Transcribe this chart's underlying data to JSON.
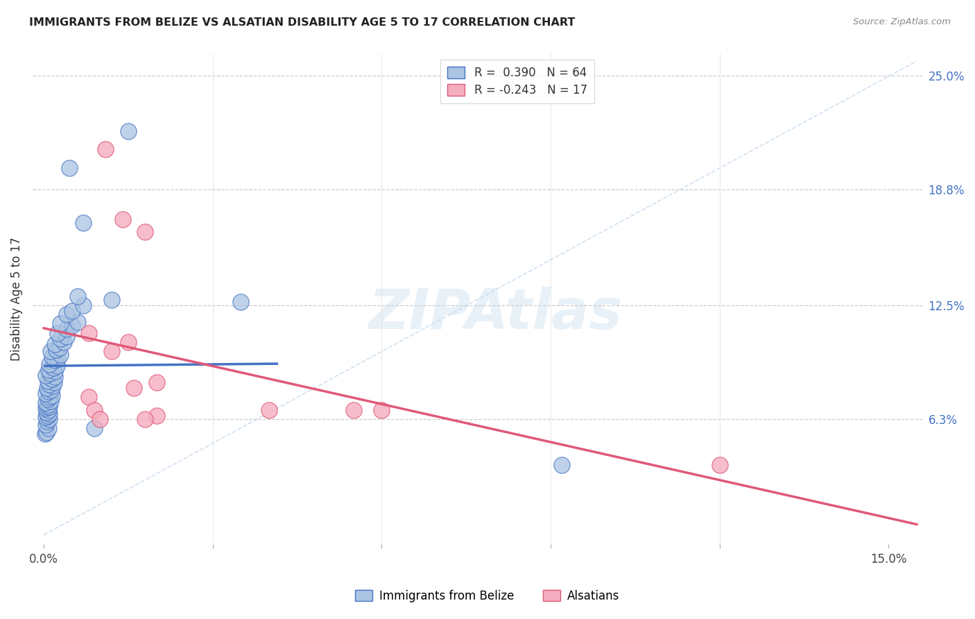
{
  "title": "IMMIGRANTS FROM BELIZE VS ALSATIAN DISABILITY AGE 5 TO 17 CORRELATION CHART",
  "source": "Source: ZipAtlas.com",
  "ylabel_label": "Disability Age 5 to 17",
  "xlim": [
    -0.002,
    0.156
  ],
  "ylim": [
    -0.005,
    0.262
  ],
  "r_belize": 0.39,
  "n_belize": 64,
  "r_alsatian": -0.243,
  "n_alsatian": 17,
  "color_belize": "#aac4e2",
  "color_alsatian": "#f5adc0",
  "line_color_belize": "#4472c4",
  "line_color_alsatian": "#e05878",
  "line_color_diagonal": "#b8d0ea",
  "right_yticks": [
    0.0,
    0.063,
    0.125,
    0.188,
    0.25
  ],
  "right_yticklabels": [
    "",
    "6.3%",
    "12.5%",
    "18.8%",
    "25.0%"
  ],
  "xticks": [
    0.0,
    0.03,
    0.06,
    0.09,
    0.12,
    0.15
  ],
  "xticklabels": [
    "0.0%",
    "",
    "",
    "",
    "",
    "15.0%"
  ],
  "belize_scatter": [
    [
      0.0002,
      0.055
    ],
    [
      0.0005,
      0.056
    ],
    [
      0.0008,
      0.058
    ],
    [
      0.0003,
      0.06
    ],
    [
      0.0006,
      0.062
    ],
    [
      0.001,
      0.063
    ],
    [
      0.0004,
      0.064
    ],
    [
      0.0007,
      0.065
    ],
    [
      0.001,
      0.066
    ],
    [
      0.0005,
      0.067
    ],
    [
      0.0009,
      0.068
    ],
    [
      0.0003,
      0.069
    ],
    [
      0.0006,
      0.07
    ],
    [
      0.001,
      0.07
    ],
    [
      0.0008,
      0.071
    ],
    [
      0.0004,
      0.072
    ],
    [
      0.0012,
      0.073
    ],
    [
      0.0007,
      0.074
    ],
    [
      0.001,
      0.075
    ],
    [
      0.0015,
      0.076
    ],
    [
      0.0003,
      0.077
    ],
    [
      0.0009,
      0.078
    ],
    [
      0.0013,
      0.079
    ],
    [
      0.0006,
      0.08
    ],
    [
      0.0016,
      0.081
    ],
    [
      0.001,
      0.082
    ],
    [
      0.0018,
      0.083
    ],
    [
      0.0007,
      0.084
    ],
    [
      0.0014,
      0.085
    ],
    [
      0.002,
      0.086
    ],
    [
      0.0004,
      0.087
    ],
    [
      0.0011,
      0.088
    ],
    [
      0.0019,
      0.089
    ],
    [
      0.0008,
      0.09
    ],
    [
      0.0017,
      0.091
    ],
    [
      0.0023,
      0.092
    ],
    [
      0.001,
      0.093
    ],
    [
      0.002,
      0.095
    ],
    [
      0.0025,
      0.096
    ],
    [
      0.0015,
      0.097
    ],
    [
      0.003,
      0.098
    ],
    [
      0.0012,
      0.1
    ],
    [
      0.0022,
      0.101
    ],
    [
      0.0028,
      0.102
    ],
    [
      0.002,
      0.104
    ],
    [
      0.0035,
      0.105
    ],
    [
      0.003,
      0.107
    ],
    [
      0.004,
      0.108
    ],
    [
      0.0025,
      0.11
    ],
    [
      0.004,
      0.112
    ],
    [
      0.005,
      0.114
    ],
    [
      0.003,
      0.115
    ],
    [
      0.006,
      0.116
    ],
    [
      0.004,
      0.12
    ],
    [
      0.005,
      0.122
    ],
    [
      0.007,
      0.125
    ],
    [
      0.006,
      0.13
    ],
    [
      0.012,
      0.128
    ],
    [
      0.007,
      0.17
    ],
    [
      0.0045,
      0.2
    ],
    [
      0.015,
      0.22
    ],
    [
      0.009,
      0.058
    ],
    [
      0.035,
      0.127
    ],
    [
      0.092,
      0.038
    ]
  ],
  "alsatian_scatter": [
    [
      0.011,
      0.21
    ],
    [
      0.014,
      0.172
    ],
    [
      0.018,
      0.165
    ],
    [
      0.008,
      0.11
    ],
    [
      0.015,
      0.105
    ],
    [
      0.012,
      0.1
    ],
    [
      0.02,
      0.083
    ],
    [
      0.016,
      0.08
    ],
    [
      0.008,
      0.075
    ],
    [
      0.009,
      0.068
    ],
    [
      0.01,
      0.063
    ],
    [
      0.02,
      0.065
    ],
    [
      0.018,
      0.063
    ],
    [
      0.04,
      0.068
    ],
    [
      0.06,
      0.068
    ],
    [
      0.055,
      0.068
    ],
    [
      0.12,
      0.038
    ]
  ]
}
